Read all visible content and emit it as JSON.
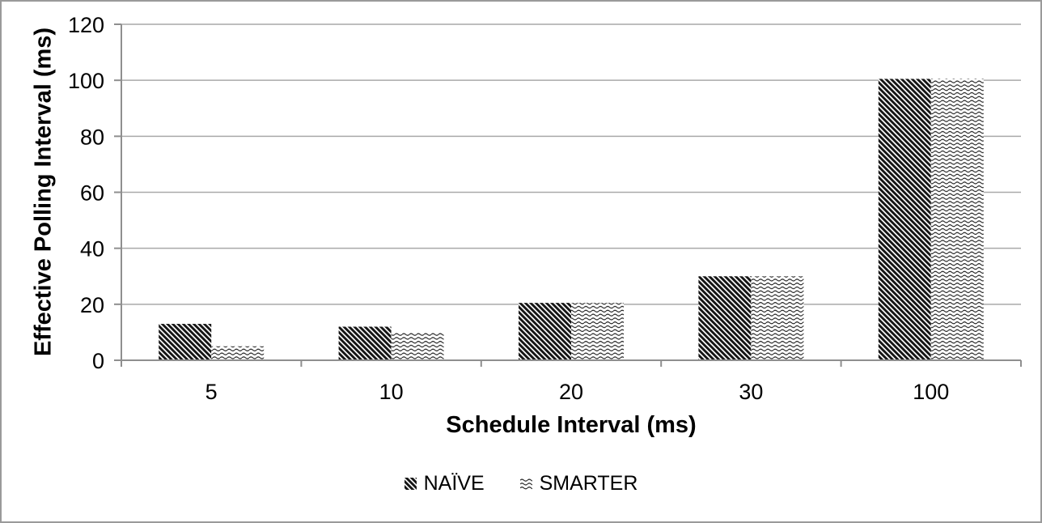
{
  "window": {
    "background": "#ffffff",
    "frame_border_color": "#9a9a9a"
  },
  "chart_data": {
    "type": "bar",
    "title": "",
    "categories": [
      "5",
      "10",
      "20",
      "30",
      "100"
    ],
    "series": [
      {
        "name": "NAÏVE",
        "pattern": "diagonal-hatch",
        "values": [
          13,
          12,
          20.5,
          30,
          100.5
        ]
      },
      {
        "name": "SMARTER",
        "pattern": "horizontal-waves",
        "values": [
          5,
          10,
          20.5,
          30,
          100.5
        ]
      }
    ],
    "xlabel": "Schedule Interval (ms)",
    "ylabel": "Effective Polling Interval (ms)",
    "ylim": [
      0,
      120
    ],
    "yticks": [
      0,
      20,
      40,
      60,
      80,
      100,
      120
    ],
    "grid": true,
    "legend_position": "bottom-center",
    "ink_color": "#141414",
    "grid_color": "#a9a9a9",
    "axis_color": "#8f8f8f",
    "text_color": "#000000"
  }
}
